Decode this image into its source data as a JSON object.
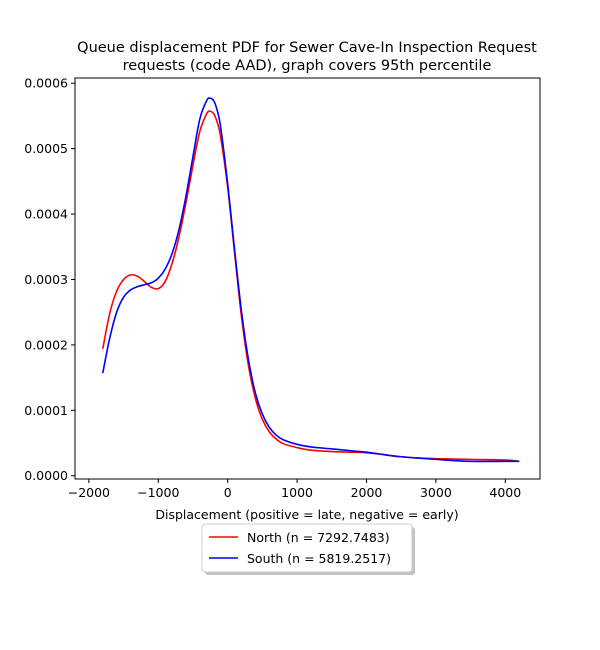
{
  "chart_data": {
    "type": "line",
    "title_line1": "Queue displacement PDF for Sewer Cave-In Inspection Request",
    "title_line2": "requests (code AAD), graph covers 95th percentile",
    "xlabel": "Displacement (positive = late, negative = early)",
    "ylabel": "",
    "xlim": [
      -2200,
      4500
    ],
    "ylim": [
      -5e-06,
      0.000608
    ],
    "xticks": [
      -2000,
      -1000,
      0,
      1000,
      2000,
      3000,
      4000
    ],
    "xtick_labels": [
      "−2000",
      "−1000",
      "0",
      "1000",
      "2000",
      "3000",
      "4000"
    ],
    "yticks": [
      0,
      0.0001,
      0.0002,
      0.0003,
      0.0004,
      0.0005,
      0.0006
    ],
    "ytick_labels": [
      "0.0000",
      "0.0001",
      "0.0002",
      "0.0003",
      "0.0004",
      "0.0005",
      "0.0006"
    ],
    "grid": false,
    "legend_position": "below",
    "series": [
      {
        "name": "North (n = 7292.7483)",
        "color": "#ff0000",
        "x": [
          -1800,
          -1700,
          -1600,
          -1500,
          -1400,
          -1300,
          -1200,
          -1100,
          -1000,
          -900,
          -800,
          -700,
          -600,
          -500,
          -400,
          -300,
          -250,
          -200,
          -150,
          -100,
          0,
          100,
          200,
          300,
          400,
          500,
          600,
          700,
          800,
          1000,
          1200,
          1500,
          1800,
          2000,
          2200,
          2500,
          3000,
          3500,
          4000,
          4200
        ],
        "y": [
          0.000194,
          0.000248,
          0.000282,
          0.0003,
          0.000307,
          0.000305,
          0.000297,
          0.000288,
          0.000286,
          0.000297,
          0.000325,
          0.000366,
          0.000418,
          0.000475,
          0.000527,
          0.000554,
          0.000557,
          0.000553,
          0.00054,
          0.000517,
          0.000441,
          0.00034,
          0.000242,
          0.000168,
          0.000118,
          8.6e-05,
          6.7e-05,
          5.6e-05,
          4.9e-05,
          4.3e-05,
          3.9e-05,
          3.7e-05,
          3.6e-05,
          3.5e-05,
          3.3e-05,
          2.9e-05,
          2.6e-05,
          2.5e-05,
          2.4e-05,
          2.2e-05
        ]
      },
      {
        "name": "South (n = 5819.2517)",
        "color": "#0000ff",
        "x": [
          -1800,
          -1700,
          -1600,
          -1500,
          -1400,
          -1300,
          -1200,
          -1100,
          -1000,
          -900,
          -800,
          -700,
          -600,
          -500,
          -400,
          -300,
          -250,
          -200,
          -150,
          -100,
          0,
          100,
          200,
          300,
          400,
          500,
          600,
          700,
          800,
          1000,
          1200,
          1500,
          1800,
          2000,
          2200,
          2500,
          3000,
          3500,
          4000,
          4200
        ],
        "y": [
          0.000157,
          0.00021,
          0.00025,
          0.000273,
          0.000284,
          0.000289,
          0.000292,
          0.000295,
          0.000302,
          0.000316,
          0.00034,
          0.000377,
          0.000428,
          0.000488,
          0.000546,
          0.000574,
          0.000577,
          0.000573,
          0.000558,
          0.000532,
          0.000446,
          0.000345,
          0.00025,
          0.000177,
          0.000126,
          9.4e-05,
          7.4e-05,
          6.2e-05,
          5.5e-05,
          4.8e-05,
          4.4e-05,
          4.1e-05,
          3.8e-05,
          3.6e-05,
          3.3e-05,
          2.9e-05,
          2.5e-05,
          2.2e-05,
          2.2e-05,
          2.2e-05
        ]
      }
    ]
  }
}
